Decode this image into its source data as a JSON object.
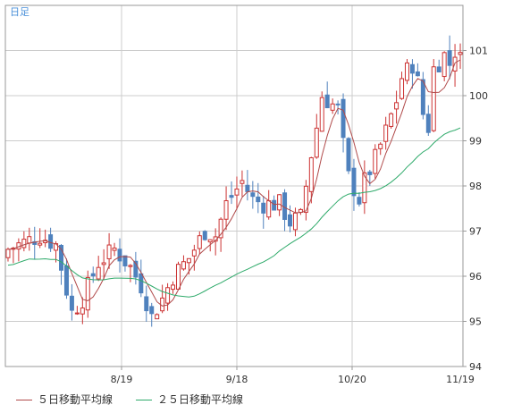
{
  "chart_data": {
    "type": "candlestick",
    "period_label": "日足",
    "x_tick_labels": [
      "8/19",
      "9/18",
      "10/20",
      "11/19"
    ],
    "y_ticks": [
      94,
      95,
      96,
      97,
      98,
      99,
      100,
      101
    ],
    "ylim": [
      94,
      102
    ],
    "grid": true,
    "colors": {
      "up": "#cc3333",
      "down": "#4f81bd",
      "ma5": "#b04a4a",
      "ma25": "#2eaa6a",
      "grid": "#cccccc",
      "frame": "#999999",
      "label": "#4a90d9"
    },
    "series": [
      {
        "name": "５日移動平均線",
        "color": "#b04a4a"
      },
      {
        "name": "２５日移動平均線",
        "color": "#2eaa6a"
      }
    ]
  }
}
